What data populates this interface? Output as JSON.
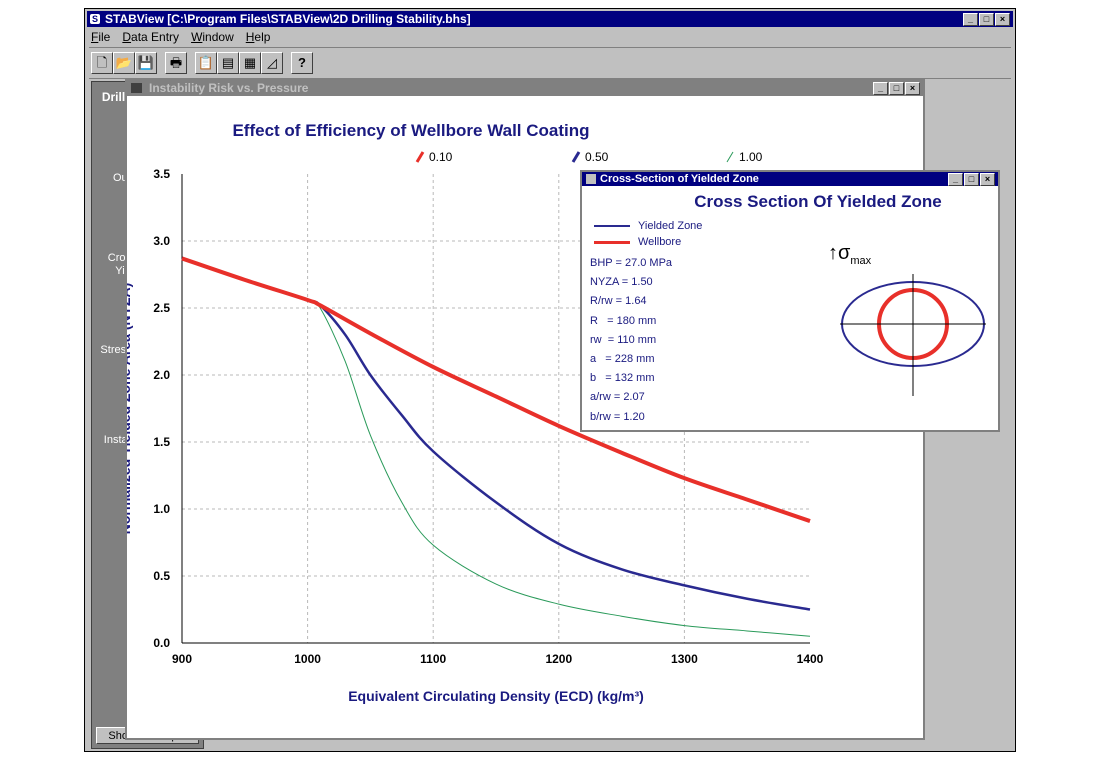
{
  "window": {
    "title": "STABView [C:\\Program Files\\STABView\\2D Drilling Stability.bhs]",
    "app_icon": "stabview-app-icon",
    "controls": [
      "_",
      "□",
      "×"
    ]
  },
  "menu": [
    "File",
    "Data Entry",
    "Window",
    "Help"
  ],
  "toolbar": {
    "buttons": [
      "new-file-icon",
      "open-folder-icon",
      "save-disk-icon",
      "print-icon",
      "open-data-icon",
      "edit-data-icon",
      "report-icon",
      "chart-icon",
      "help-icon"
    ]
  },
  "sidebar": {
    "title": "Drilling Stability",
    "items": [
      {
        "label": "Output Report",
        "icon": "output-report-icon"
      },
      {
        "label": "Cross-section of Yielded Zone",
        "icon": "cross-section-icon"
      },
      {
        "label": "Stresses vs. Radial Distance",
        "icon": "stresses-chart-icon"
      },
      {
        "label": "Instability Risk vs. Pressure",
        "icon": "instability-chart-icon"
      }
    ],
    "show_all": "Show All Output"
  },
  "chart_window": {
    "title": "Instability Risk vs. Pressure"
  },
  "chart_data": {
    "type": "line",
    "title": "Effect of Efficiency of Wellbore Wall Coating",
    "xlabel": "Equivalent Circulating Density (ECD) (kg/m³)",
    "ylabel": "Normalized Yielded Zone Area (NYZA)",
    "xlim": [
      900,
      1400
    ],
    "ylim": [
      0,
      3.5
    ],
    "xticks": [
      "900",
      "1000",
      "1100",
      "1200",
      "1300",
      "1400"
    ],
    "yticks": [
      "0.0",
      "0.5",
      "1.0",
      "1.5",
      "2.0",
      "2.5",
      "3.0",
      "3.5"
    ],
    "grid": true,
    "legend_position": "top",
    "series": [
      {
        "name": "0.10",
        "color": "#e8302a",
        "x": [
          900,
          950,
          1000,
          1010,
          1050,
          1100,
          1150,
          1200,
          1250,
          1300,
          1350,
          1400
        ],
        "y": [
          2.87,
          2.71,
          2.56,
          2.52,
          2.31,
          2.06,
          1.84,
          1.62,
          1.42,
          1.23,
          1.07,
          0.91
        ]
      },
      {
        "name": "0.50",
        "color": "#2a2a90",
        "x": [
          900,
          950,
          1000,
          1010,
          1030,
          1050,
          1075,
          1100,
          1150,
          1200,
          1250,
          1300,
          1350,
          1400
        ],
        "y": [
          2.87,
          2.71,
          2.56,
          2.52,
          2.3,
          2.0,
          1.7,
          1.43,
          1.05,
          0.74,
          0.55,
          0.43,
          0.33,
          0.25
        ]
      },
      {
        "name": "1.00",
        "color": "#2a9a5a",
        "x": [
          900,
          950,
          1000,
          1010,
          1030,
          1050,
          1075,
          1100,
          1150,
          1200,
          1250,
          1300,
          1350,
          1400
        ],
        "y": [
          2.87,
          2.71,
          2.56,
          2.5,
          2.1,
          1.55,
          1.05,
          0.73,
          0.44,
          0.29,
          0.2,
          0.13,
          0.09,
          0.05
        ]
      }
    ]
  },
  "cross_section": {
    "window_title": "Cross-Section of Yielded Zone",
    "heading": "Cross Section Of Yielded Zone",
    "legend": [
      {
        "label": "Yielded Zone",
        "color": "#2a2a90"
      },
      {
        "label": "Wellbore",
        "color": "#e8302a"
      }
    ],
    "params": [
      "BHP = 27.0 MPa",
      "NYZA = 1.50",
      "R/rw = 1.64",
      "R   = 180 mm",
      "rw  = 110 mm",
      "a   = 228 mm",
      "b   = 132 mm",
      "a/rw = 2.07",
      "b/rw = 1.20"
    ],
    "sigma_label": "↑σ",
    "sigma_sub": "max"
  }
}
